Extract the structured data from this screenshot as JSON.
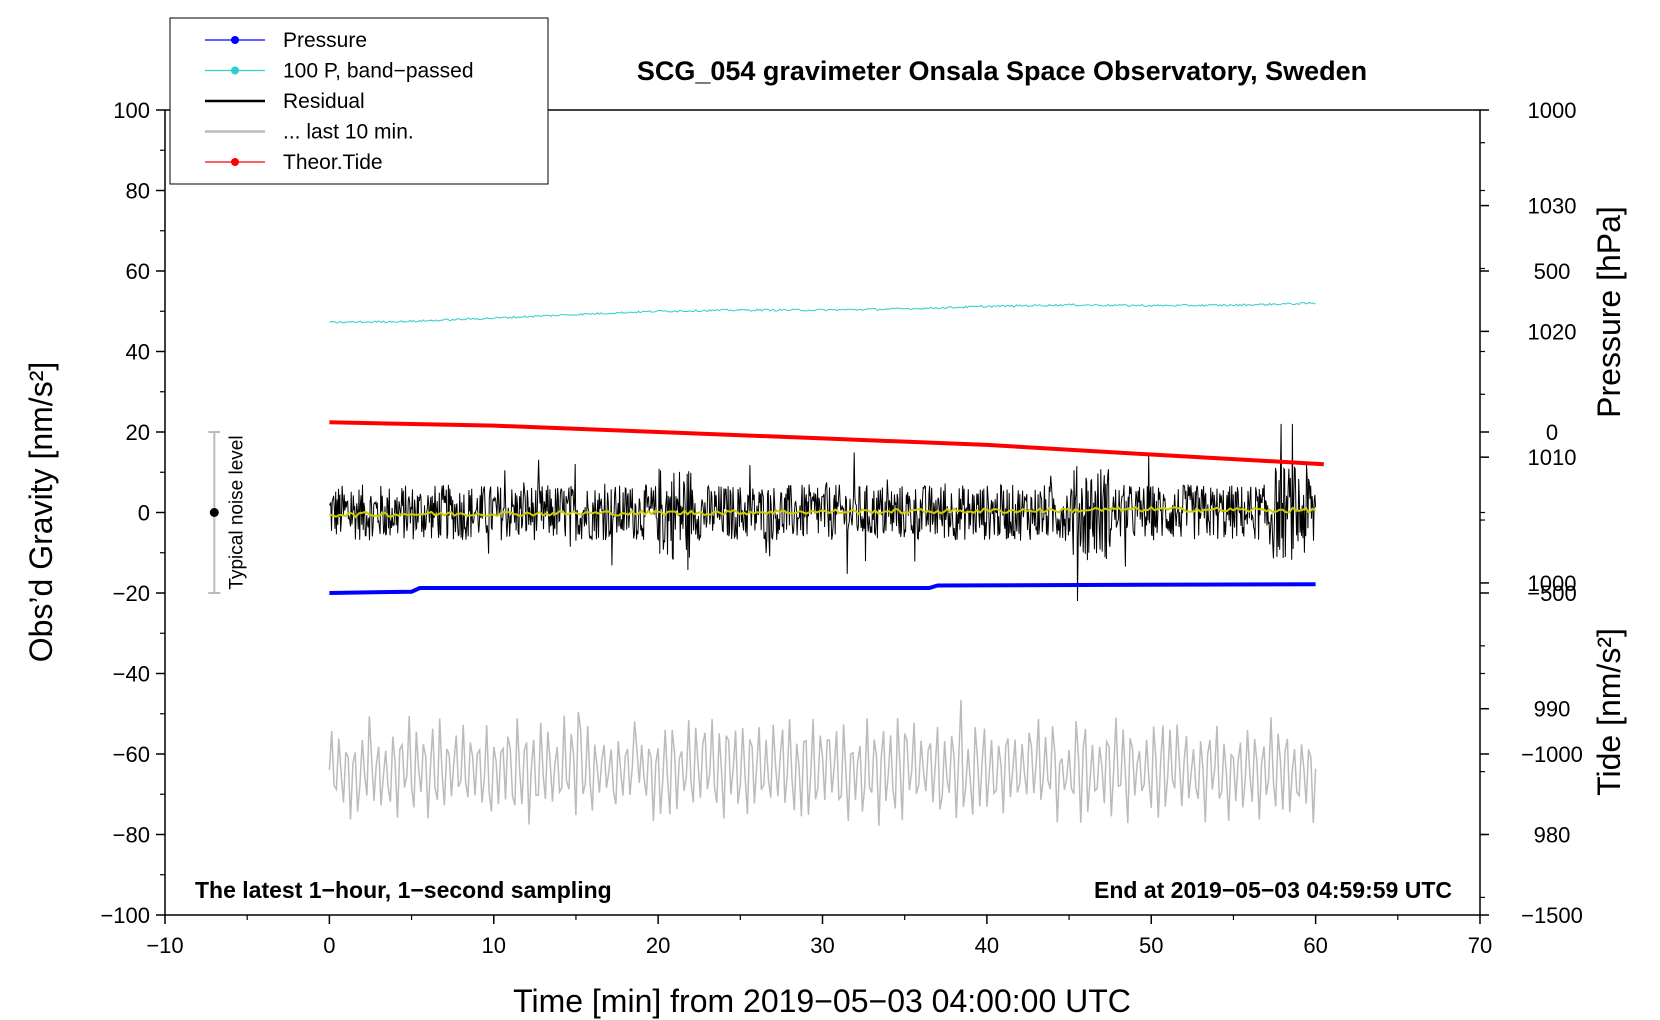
{
  "chart_data": {
    "type": "line",
    "title": "SCG_054 gravimeter Onsala Space Observatory, Sweden",
    "xlabel": "Time [min] from 2019−05−03 04:00:00 UTC",
    "ylabel_left": "Obs’d Gravity [nm/s²]",
    "ylabel_right_pressure": "Pressure [hPa]",
    "ylabel_right_tide": "Tide [nm/s²]",
    "xlim": [
      -10,
      70
    ],
    "ylim": [
      -100,
      100
    ],
    "pressure_lim": [
      973.6,
      1037.6
    ],
    "tide_lim": [
      -1500,
      1000
    ],
    "grid": false,
    "legend_position": "top-left",
    "x_ticks": [
      -10,
      0,
      10,
      20,
      30,
      40,
      50,
      60,
      70
    ],
    "x_tick_labels": [
      "−10",
      "0",
      "10",
      "20",
      "30",
      "40",
      "50",
      "60",
      "70"
    ],
    "y_ticks": [
      -100,
      -80,
      -60,
      -40,
      -20,
      0,
      20,
      40,
      60,
      80,
      100
    ],
    "y_tick_labels": [
      "−100",
      "−80",
      "−60",
      "−40",
      "−20",
      "0",
      "20",
      "40",
      "60",
      "80",
      "100"
    ],
    "pressure_ticks": [
      980,
      990,
      1000,
      1010,
      1020,
      1030
    ],
    "pressure_tick_labels": [
      "980",
      "990",
      "1000",
      "1010",
      "1020",
      "1030"
    ],
    "tide_ticks": [
      -1500,
      -1000,
      -500,
      0,
      500,
      1000
    ],
    "tide_tick_labels": [
      "−1500",
      "−1000",
      "−500",
      "0",
      "500",
      "1000"
    ],
    "series": [
      {
        "name": "Pressure",
        "color": "#0000ff",
        "axis": "pressure",
        "x": [
          0,
          5,
          5.5,
          36.5,
          37,
          60
        ],
        "y": [
          999.2,
          999.3,
          999.6,
          999.6,
          999.8,
          999.9
        ]
      },
      {
        "name": "100 P, band−passed",
        "color": "#33cccc",
        "axis": "left",
        "x": [
          0,
          5,
          10,
          15,
          20,
          25,
          30,
          35,
          40,
          45,
          50,
          55,
          60
        ],
        "y": [
          47.2,
          47.5,
          48.3,
          49.2,
          50.0,
          50.3,
          50.3,
          50.6,
          51.2,
          51.6,
          51.4,
          51.5,
          52.0
        ]
      },
      {
        "name": "Residual",
        "color": "#000000",
        "axis": "left",
        "x_range": [
          0,
          60
        ],
        "typical_amplitude": 7,
        "min": -22,
        "max": 22
      },
      {
        "name": "... last 10 min.",
        "color": "#bbbbbb",
        "axis": "left",
        "x_range": [
          0,
          60
        ],
        "typical_amplitude": 12,
        "center": -64,
        "min": -82,
        "max": -41
      },
      {
        "name": "Theor.Tide",
        "color": "#ff0000",
        "axis": "tide",
        "x": [
          0,
          10,
          20,
          30,
          40,
          50,
          60.5
        ],
        "y": [
          30,
          20,
          0,
          -20,
          -40,
          -70,
          -100
        ]
      },
      {
        "name": "",
        "color": "#cccc00",
        "axis": "left",
        "x": [
          0,
          10,
          20,
          30,
          40,
          50,
          60
        ],
        "y": [
          -0.5,
          -0.3,
          -0.1,
          0.2,
          0.4,
          0.8,
          0.5
        ]
      }
    ],
    "annotations": {
      "noise_bar": {
        "x": -7,
        "center": 0,
        "low": -20,
        "high": 20,
        "label": "Typical noise level"
      },
      "bottom_left": "The latest 1−hour, 1−second sampling",
      "bottom_right": "End at 2019−05−03 04:59:59 UTC"
    }
  }
}
